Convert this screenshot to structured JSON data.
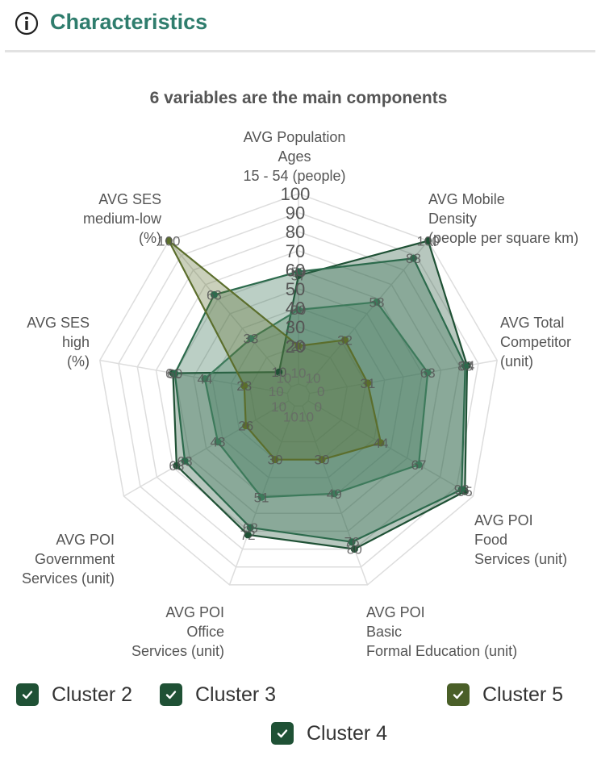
{
  "header": {
    "title": "Characteristics",
    "icon": "info-icon"
  },
  "chart_data": {
    "type": "radar",
    "title": "6 variables are the main components",
    "axes": [
      [
        "AVG Population",
        "Ages",
        "15 - 54 (people)"
      ],
      [
        "AVG Mobile",
        "Density",
        "(people per square km)"
      ],
      [
        "AVG Total",
        "Competitor",
        "(unit)"
      ],
      [
        "AVG POI",
        "Food",
        "Services (unit)"
      ],
      [
        "AVG POI",
        "Basic",
        "Formal Education (unit)"
      ],
      [
        "AVG POI",
        "Office",
        "Services (unit)"
      ],
      [
        "AVG POI",
        "Government",
        "Services (unit)"
      ],
      [
        "AVG SES",
        "high",
        "(%)"
      ],
      [
        "AVG SES",
        "medium-low",
        "(%)"
      ]
    ],
    "radial_ticks": [
      20,
      30,
      40,
      50,
      60,
      70,
      80,
      90,
      100
    ],
    "range": [
      0,
      100
    ],
    "series": [
      {
        "name": "Cluster 2",
        "color": "#1f5135",
        "values": [
          57,
          100,
          84,
          95,
          80,
          72,
          68,
          61,
          10
        ]
      },
      {
        "name": "Cluster 3",
        "color": "#2c6a4c",
        "values": [
          59,
          88,
          83,
          93,
          76,
          68,
          63,
          60,
          63
        ]
      },
      {
        "name": "Cluster 4",
        "color": "#3d7a5b",
        "values": [
          39,
          58,
          63,
          67,
          49,
          51,
          43,
          44,
          33
        ]
      },
      {
        "name": "Cluster 5",
        "color": "#5b6e2c",
        "values": [
          20,
          32,
          31,
          44,
          30,
          30,
          26,
          23,
          100
        ]
      }
    ],
    "inner_labels": [
      10,
      10,
      0,
      0,
      10,
      10,
      10,
      10,
      10
    ],
    "legend": [
      {
        "name": "Cluster 2",
        "box_color": "#1f5135"
      },
      {
        "name": "Cluster 3",
        "box_color": "#1f5135"
      },
      {
        "name": "Cluster 5",
        "box_color": "#4a5f28"
      },
      {
        "name": "Cluster 4",
        "box_color": "#1f5135"
      }
    ]
  }
}
